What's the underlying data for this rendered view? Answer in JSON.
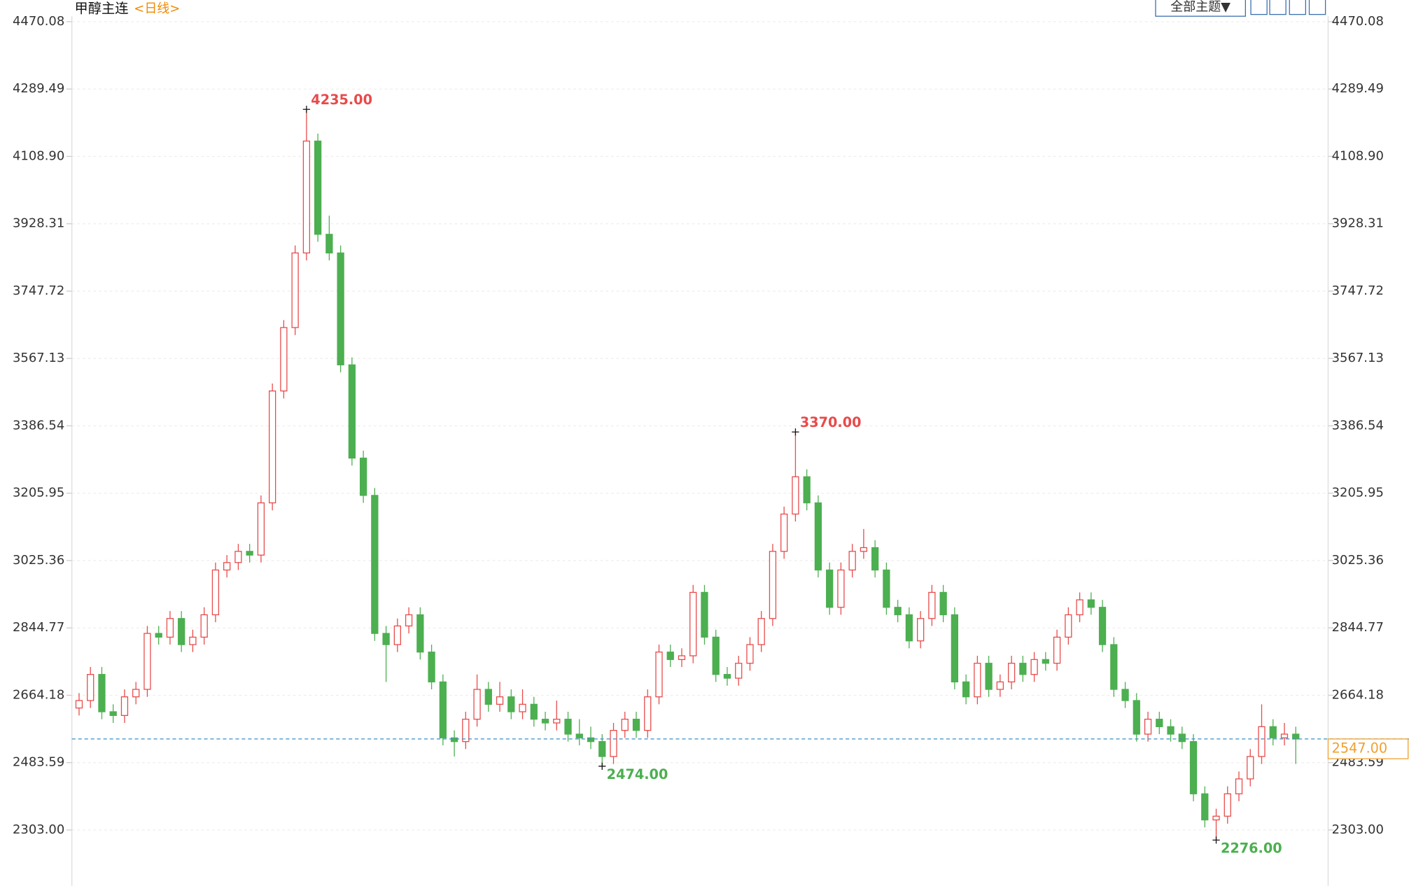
{
  "chart_data": {
    "type": "candlestick",
    "title": "甲醇主连",
    "subtitle": "<日线>",
    "toolbar": "全部主题▼",
    "ylim": [
      2153,
      4528
    ],
    "yticks": [
      4470.08,
      4289.49,
      {
        "value": 4108.9,
        "label": "4108.90"
      },
      3928.31,
      3747.72,
      3567.13,
      3386.54,
      3205.95,
      3025.36,
      2844.77,
      2664.18,
      2483.59,
      {
        "value": 2303,
        "label": "2303.00"
      }
    ],
    "grid": true,
    "up_color": "#e84a4a",
    "down_color": "#4caf50",
    "current_color": "#3a8fc8",
    "current_label_color": "#f0a030",
    "current": {
      "value": 2547,
      "label": "2547.00"
    },
    "annotations": [
      {
        "value": 4235,
        "label": "4235.00",
        "kind": "high"
      },
      {
        "value": 3370,
        "label": "3370.00",
        "kind": "high"
      },
      {
        "value": 2474,
        "label": "2474.00",
        "kind": "low"
      },
      {
        "value": 2276,
        "label": "2276.00",
        "kind": "low"
      }
    ],
    "candles": [
      [
        2630,
        2670,
        2610,
        2650
      ],
      [
        2650,
        2740,
        2630,
        2720
      ],
      [
        2720,
        2740,
        2600,
        2620
      ],
      [
        2620,
        2640,
        2590,
        2610
      ],
      [
        2610,
        2680,
        2590,
        2660
      ],
      [
        2660,
        2700,
        2640,
        2680
      ],
      [
        2680,
        2850,
        2660,
        2830
      ],
      [
        2830,
        2850,
        2800,
        2820
      ],
      [
        2820,
        2890,
        2800,
        2870
      ],
      [
        2870,
        2890,
        2780,
        2800
      ],
      [
        2800,
        2840,
        2780,
        2820
      ],
      [
        2820,
        2900,
        2800,
        2880
      ],
      [
        2880,
        3020,
        2860,
        3000
      ],
      [
        3000,
        3040,
        2980,
        3020
      ],
      [
        3020,
        3070,
        3000,
        3050
      ],
      [
        3050,
        3070,
        3020,
        3040
      ],
      [
        3040,
        3200,
        3020,
        3180
      ],
      [
        3180,
        3500,
        3160,
        3480
      ],
      [
        3480,
        3670,
        3460,
        3650
      ],
      [
        3650,
        3870,
        3630,
        3850
      ],
      [
        3850,
        4235,
        3830,
        4150
      ],
      [
        4150,
        4170,
        3880,
        3900
      ],
      [
        3900,
        3950,
        3830,
        3850
      ],
      [
        3850,
        3870,
        3530,
        3550
      ],
      [
        3550,
        3570,
        3280,
        3300
      ],
      [
        3300,
        3320,
        3180,
        3200
      ],
      [
        3200,
        3220,
        2810,
        2830
      ],
      [
        2830,
        2850,
        2700,
        2800
      ],
      [
        2800,
        2870,
        2780,
        2850
      ],
      [
        2850,
        2900,
        2830,
        2880
      ],
      [
        2880,
        2900,
        2760,
        2780
      ],
      [
        2780,
        2800,
        2680,
        2700
      ],
      [
        2700,
        2720,
        2530,
        2550
      ],
      [
        2550,
        2570,
        2500,
        2540
      ],
      [
        2540,
        2620,
        2520,
        2600
      ],
      [
        2600,
        2720,
        2580,
        2680
      ],
      [
        2680,
        2700,
        2620,
        2640
      ],
      [
        2640,
        2700,
        2620,
        2660
      ],
      [
        2660,
        2680,
        2600,
        2620
      ],
      [
        2620,
        2680,
        2600,
        2640
      ],
      [
        2640,
        2660,
        2580,
        2600
      ],
      [
        2600,
        2620,
        2570,
        2590
      ],
      [
        2590,
        2650,
        2570,
        2600
      ],
      [
        2600,
        2620,
        2540,
        2560
      ],
      [
        2560,
        2600,
        2530,
        2550
      ],
      [
        2550,
        2580,
        2520,
        2540
      ],
      [
        2540,
        2560,
        2474,
        2500
      ],
      [
        2500,
        2590,
        2480,
        2570
      ],
      [
        2570,
        2620,
        2550,
        2600
      ],
      [
        2600,
        2620,
        2550,
        2570
      ],
      [
        2570,
        2680,
        2550,
        2660
      ],
      [
        2660,
        2800,
        2640,
        2780
      ],
      [
        2780,
        2800,
        2740,
        2760
      ],
      [
        2760,
        2790,
        2740,
        2770
      ],
      [
        2770,
        2960,
        2750,
        2940
      ],
      [
        2940,
        2960,
        2800,
        2820
      ],
      [
        2820,
        2840,
        2700,
        2720
      ],
      [
        2720,
        2740,
        2690,
        2710
      ],
      [
        2710,
        2770,
        2690,
        2750
      ],
      [
        2750,
        2820,
        2730,
        2800
      ],
      [
        2800,
        2890,
        2780,
        2870
      ],
      [
        2870,
        3070,
        2850,
        3050
      ],
      [
        3050,
        3170,
        3030,
        3150
      ],
      [
        3150,
        3370,
        3130,
        3250
      ],
      [
        3250,
        3270,
        3160,
        3180
      ],
      [
        3180,
        3200,
        2980,
        3000
      ],
      [
        3000,
        3020,
        2880,
        2900
      ],
      [
        2900,
        3020,
        2880,
        3000
      ],
      [
        3000,
        3070,
        2980,
        3050
      ],
      [
        3050,
        3110,
        3030,
        3060
      ],
      [
        3060,
        3080,
        2980,
        3000
      ],
      [
        3000,
        3020,
        2880,
        2900
      ],
      [
        2900,
        2920,
        2860,
        2880
      ],
      [
        2880,
        2900,
        2790,
        2810
      ],
      [
        2810,
        2890,
        2790,
        2870
      ],
      [
        2870,
        2960,
        2850,
        2940
      ],
      [
        2940,
        2960,
        2860,
        2880
      ],
      [
        2880,
        2900,
        2680,
        2700
      ],
      [
        2700,
        2720,
        2640,
        2660
      ],
      [
        2660,
        2770,
        2640,
        2750
      ],
      [
        2750,
        2770,
        2660,
        2680
      ],
      [
        2680,
        2720,
        2660,
        2700
      ],
      [
        2700,
        2770,
        2680,
        2750
      ],
      [
        2750,
        2770,
        2700,
        2720
      ],
      [
        2720,
        2780,
        2700,
        2760
      ],
      [
        2760,
        2780,
        2730,
        2750
      ],
      [
        2750,
        2840,
        2730,
        2820
      ],
      [
        2820,
        2900,
        2800,
        2880
      ],
      [
        2880,
        2940,
        2860,
        2920
      ],
      [
        2920,
        2940,
        2880,
        2900
      ],
      [
        2900,
        2920,
        2780,
        2800
      ],
      [
        2800,
        2820,
        2660,
        2680
      ],
      [
        2680,
        2700,
        2630,
        2650
      ],
      [
        2650,
        2670,
        2540,
        2560
      ],
      [
        2560,
        2620,
        2540,
        2600
      ],
      [
        2600,
        2620,
        2560,
        2580
      ],
      [
        2580,
        2600,
        2540,
        2560
      ],
      [
        2560,
        2580,
        2520,
        2540
      ],
      [
        2540,
        2560,
        2380,
        2400
      ],
      [
        2400,
        2420,
        2310,
        2330
      ],
      [
        2330,
        2360,
        2276,
        2340
      ],
      [
        2340,
        2420,
        2320,
        2400
      ],
      [
        2400,
        2460,
        2380,
        2440
      ],
      [
        2440,
        2520,
        2420,
        2500
      ],
      [
        2500,
        2640,
        2480,
        2580
      ],
      [
        2580,
        2600,
        2530,
        2550
      ],
      [
        2550,
        2590,
        2530,
        2560
      ],
      [
        2560,
        2580,
        2480,
        2547
      ]
    ]
  }
}
